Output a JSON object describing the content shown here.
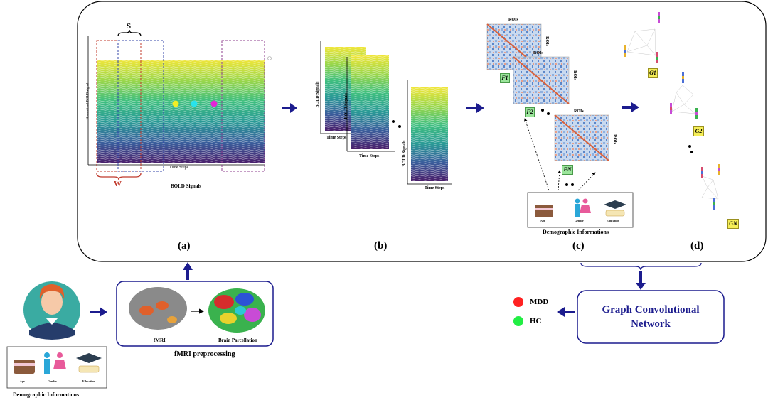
{
  "panel_a": {
    "stride_label": "S",
    "window_label": "W",
    "y_axis_label": "Normalized BOLD signal",
    "x_axis_label": "Time Steps",
    "caption": "BOLD Signals",
    "panel_letter": "(a)"
  },
  "panel_b": {
    "y_axis_label": "BOLD Signals",
    "x_axis_label": "Time Steps",
    "panel_letter": "(b)"
  },
  "panel_c": {
    "matrix_axis_label": "ROIs",
    "matrix_names": [
      "F1",
      "F2",
      "FN"
    ],
    "demographics_caption": "Demographic Informations",
    "demographics_items": [
      "Age",
      "Gender",
      "Education"
    ],
    "panel_letter": "(c)"
  },
  "panel_d": {
    "graph_names": [
      "G1",
      "G2",
      "GN"
    ],
    "panel_letter": "(d)"
  },
  "subject_demographics": {
    "caption": "Demographic Informations",
    "items": [
      "Age",
      "Gender",
      "Education"
    ]
  },
  "preprocessing": {
    "fmri_label": "fMRI",
    "parcellation_label": "Brain Parcellation",
    "caption": "fMRI preprocessing"
  },
  "gcn": {
    "title": "Graph Convolutional\nNetwork"
  },
  "outputs": [
    {
      "label": "MDD",
      "color": "#ff2222"
    },
    {
      "label": "HC",
      "color": "#22ee44"
    }
  ],
  "colors": {
    "arrow": "#1c1c8e",
    "box_border": "#1c1c8e",
    "window_red": "#c0392b",
    "window_blue": "#3344aa",
    "window_purple": "#8e3c8e"
  }
}
